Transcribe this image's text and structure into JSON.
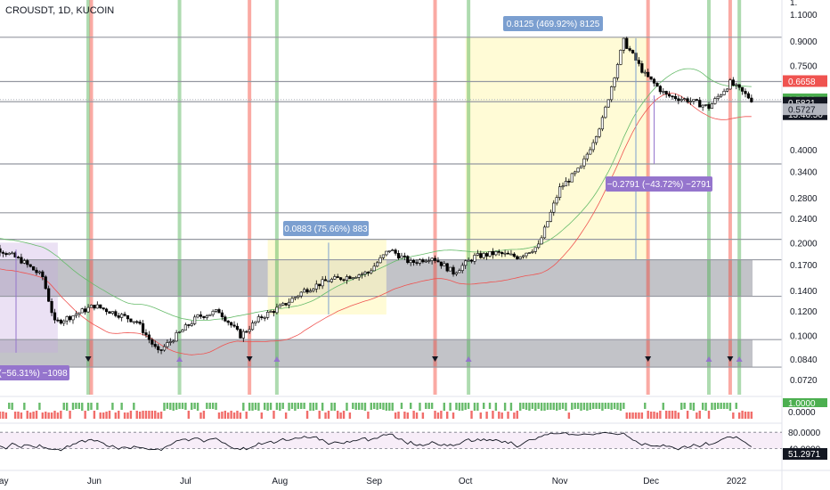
{
  "title": "CROUSDT, 1D, KUCOIN",
  "colors": {
    "up": "#26a69a",
    "down": "#ef5350",
    "vline_green": "#4caf50",
    "vline_red": "#f44336",
    "zone_gray": "#787b86",
    "measure_box": "#7b9fd0",
    "measure_box_down": "#9575cd",
    "cloud_blue": "#8e9ed6",
    "cloud_purple": "#c7a8e0",
    "yellow_zone": "#fff9c4",
    "hline": "#9598a1",
    "last_price": "#131722"
  },
  "price_labels": {
    "ticks": [
      "1.1000",
      "0.9000",
      "0.7500",
      "0.4000",
      "0.3400",
      "0.2800",
      "0.2400",
      "0.2000",
      "0.1700",
      "0.1400",
      "0.1200",
      "0.1000",
      "0.0840",
      "0.0720"
    ],
    "top_tick": "1."
  },
  "price_tags": [
    {
      "text": "0.6658",
      "bg": "#ef5350",
      "fg": "#ffffff"
    },
    {
      "text": "0.5889",
      "bg": "#4caf50",
      "fg": "#ffffff"
    },
    {
      "text": "0.5821",
      "bg": "#131722",
      "fg": "#ffffff"
    },
    {
      "text": "13:46:50",
      "bg": "#131722",
      "fg": "#ffffff"
    },
    {
      "text": "0.5727",
      "bg": "#b2b5be",
      "fg": "#131722"
    }
  ],
  "x_labels": [
    "May",
    "Jun",
    "Jul",
    "Aug",
    "Sep",
    "Oct",
    "Nov",
    "Dec",
    "2022"
  ],
  "measure_boxes": [
    {
      "text": "0.8125 (469.92%) 8125"
    },
    {
      "text": "0.0883 (75.66%) 883"
    },
    {
      "text": "−0.2791 (−43.72%) −2791"
    },
    {
      "text": "(−56.31%) −1098"
    }
  ],
  "indicator_tags": [
    {
      "text": "1.0000",
      "bg": "#4caf50"
    },
    {
      "text": "0.0000",
      "bg": "#ffffff"
    }
  ],
  "rsi": {
    "levels": [
      "80.0000",
      "40.0000"
    ],
    "value": "51.2971"
  },
  "chart_data": {
    "type": "candlestick",
    "title": "CROUSDT, 1D, KUCOIN",
    "y_scale": "log",
    "ylim": [
      0.066,
      1.2
    ],
    "x_range": [
      "2021-04-24",
      "2022-01-06"
    ],
    "key_levels": [
      0.9265,
      0.6658,
      0.5727,
      0.36,
      0.25,
      0.205,
      0.176,
      0.134,
      0.097,
      0.079
    ],
    "series_points": [
      [
        "2021-04-24",
        0.195
      ],
      [
        "2021-05-01",
        0.19
      ],
      [
        "2021-05-08",
        0.175
      ],
      [
        "2021-05-15",
        0.155
      ],
      [
        "2021-05-19",
        0.11
      ],
      [
        "2021-05-24",
        0.115
      ],
      [
        "2021-06-01",
        0.125
      ],
      [
        "2021-06-08",
        0.118
      ],
      [
        "2021-06-15",
        0.111
      ],
      [
        "2021-06-22",
        0.088
      ],
      [
        "2021-06-28",
        0.1
      ],
      [
        "2021-07-05",
        0.115
      ],
      [
        "2021-07-12",
        0.12
      ],
      [
        "2021-07-19",
        0.1
      ],
      [
        "2021-07-26",
        0.115
      ],
      [
        "2021-08-02",
        0.125
      ],
      [
        "2021-08-09",
        0.14
      ],
      [
        "2021-08-16",
        0.15
      ],
      [
        "2021-08-23",
        0.155
      ],
      [
        "2021-08-30",
        0.16
      ],
      [
        "2021-09-06",
        0.19
      ],
      [
        "2021-09-13",
        0.172
      ],
      [
        "2021-09-20",
        0.18
      ],
      [
        "2021-09-27",
        0.16
      ],
      [
        "2021-10-04",
        0.18
      ],
      [
        "2021-10-11",
        0.185
      ],
      [
        "2021-10-18",
        0.18
      ],
      [
        "2021-10-25",
        0.195
      ],
      [
        "2021-11-01",
        0.3
      ],
      [
        "2021-11-08",
        0.35
      ],
      [
        "2021-11-15",
        0.5
      ],
      [
        "2021-11-22",
        0.9
      ],
      [
        "2021-11-29",
        0.7
      ],
      [
        "2021-12-06",
        0.6
      ],
      [
        "2021-12-13",
        0.58
      ],
      [
        "2021-12-20",
        0.55
      ],
      [
        "2021-12-27",
        0.66
      ],
      [
        "2022-01-03",
        0.582
      ]
    ],
    "last_price": 0.5821
  }
}
